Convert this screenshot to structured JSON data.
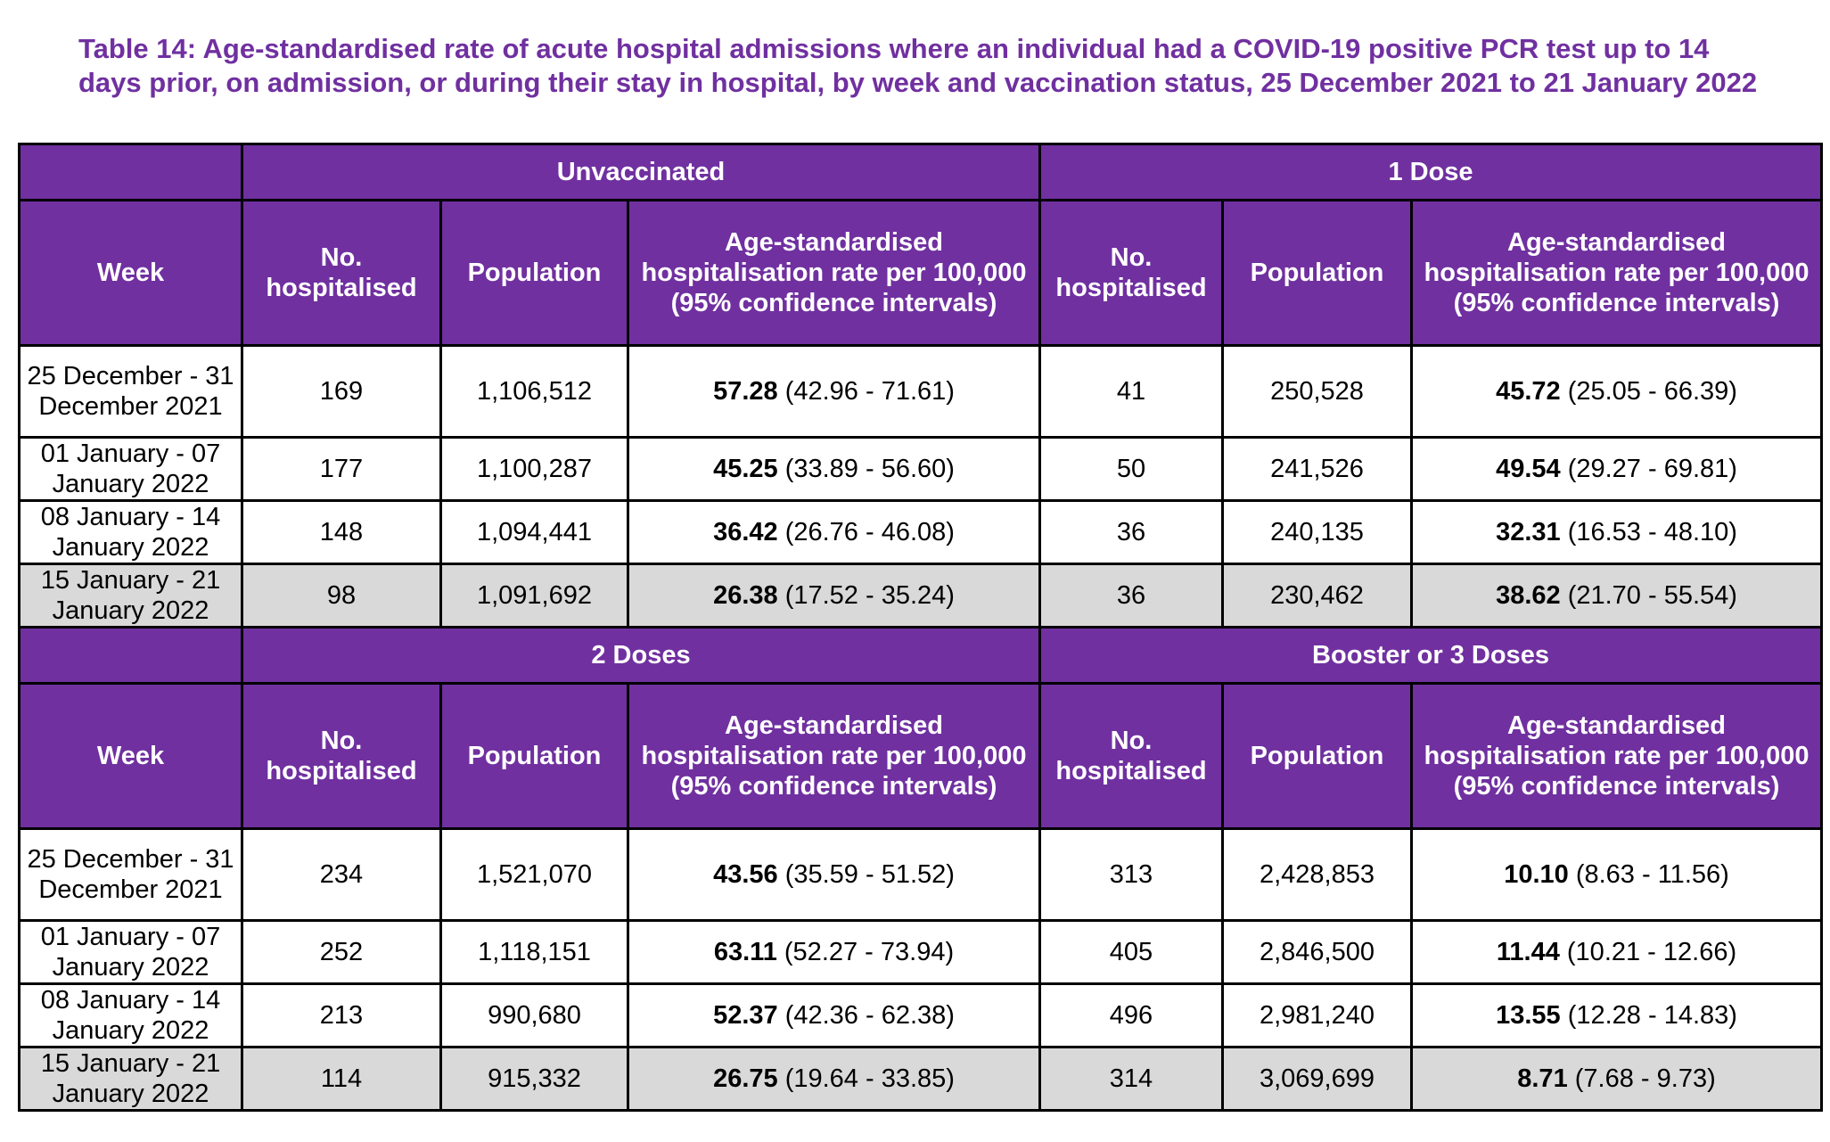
{
  "caption": "Table 14: Age-standardised rate of acute hospital admissions where an individual had a COVID-19 positive PCR test up to 14 days prior, on admission, or during their stay in hospital, by week and vaccination status, 25 December 2021 to 21 January 2022",
  "columns": {
    "week": "Week",
    "hospitalised": "No. hospitalised",
    "population": "Population",
    "rate": "Age-standardised hospitalisation rate per 100,000 (95% confidence intervals)"
  },
  "sections": [
    {
      "left_group": "Unvaccinated",
      "right_group": "1 Dose",
      "rows": [
        {
          "week": "25 December - 31 December 2021",
          "l_hosp": "169",
          "l_pop": "1,106,512",
          "l_rate": "57.28",
          "l_ci": " (42.96 - 71.61)",
          "r_hosp": "41",
          "r_pop": "250,528",
          "r_rate": "45.72",
          "r_ci": " (25.05 - 66.39)"
        },
        {
          "week": "01 January - 07 January 2022",
          "l_hosp": "177",
          "l_pop": "1,100,287",
          "l_rate": "45.25",
          "l_ci": " (33.89 - 56.60)",
          "r_hosp": "50",
          "r_pop": "241,526",
          "r_rate": "49.54",
          "r_ci": " (29.27 - 69.81)"
        },
        {
          "week": "08 January - 14 January 2022",
          "l_hosp": "148",
          "l_pop": "1,094,441",
          "l_rate": "36.42",
          "l_ci": " (26.76 - 46.08)",
          "r_hosp": "36",
          "r_pop": "240,135",
          "r_rate": "32.31",
          "r_ci": " (16.53 - 48.10)"
        },
        {
          "week": "15 January - 21 January 2022",
          "l_hosp": "98",
          "l_pop": "1,091,692",
          "l_rate": "26.38",
          "l_ci": " (17.52 - 35.24)",
          "r_hosp": "36",
          "r_pop": "230,462",
          "r_rate": "38.62",
          "r_ci": " (21.70 - 55.54)"
        }
      ]
    },
    {
      "left_group": "2 Doses",
      "right_group": "Booster or 3 Doses",
      "rows": [
        {
          "week": "25 December - 31 December 2021",
          "l_hosp": "234",
          "l_pop": "1,521,070",
          "l_rate": "43.56",
          "l_ci": " (35.59 - 51.52)",
          "r_hosp": "313",
          "r_pop": "2,428,853",
          "r_rate": "10.10",
          "r_ci": " (8.63 - 11.56)"
        },
        {
          "week": "01 January - 07 January 2022",
          "l_hosp": "252",
          "l_pop": "1,118,151",
          "l_rate": "63.11",
          "l_ci": " (52.27 - 73.94)",
          "r_hosp": "405",
          "r_pop": "2,846,500",
          "r_rate": "11.44",
          "r_ci": " (10.21 - 12.66)"
        },
        {
          "week": "08 January - 14 January 2022",
          "l_hosp": "213",
          "l_pop": "990,680",
          "l_rate": "52.37",
          "l_ci": " (42.36 - 62.38)",
          "r_hosp": "496",
          "r_pop": "2,981,240",
          "r_rate": "13.55",
          "r_ci": " (12.28 - 14.83)"
        },
        {
          "week": "15 January - 21 January 2022",
          "l_hosp": "114",
          "l_pop": "915,332",
          "l_rate": "26.75",
          "l_ci": " (19.64 - 33.85)",
          "r_hosp": "314",
          "r_pop": "3,069,699",
          "r_rate": "8.71",
          "r_ci": " (7.68 - 9.73)"
        }
      ]
    }
  ]
}
